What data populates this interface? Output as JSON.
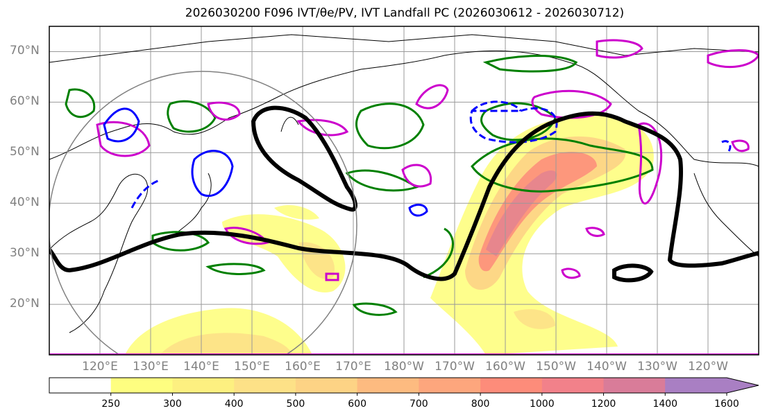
{
  "title": "2026030200 F096 IVT/θe/PV, IVT Landfall PC (2026030612 - 2026030712)",
  "map": {
    "lat_labels": [
      {
        "value": 70,
        "label": "70°N"
      },
      {
        "value": 60,
        "label": "60°N"
      },
      {
        "value": 50,
        "label": "50°N"
      },
      {
        "value": 40,
        "label": "40°N"
      },
      {
        "value": 30,
        "label": "30°N"
      },
      {
        "value": 20,
        "label": "20°N"
      }
    ],
    "lon_labels": [
      {
        "value": 120,
        "label": "120°E"
      },
      {
        "value": 130,
        "label": "130°E"
      },
      {
        "value": 140,
        "label": "140°E"
      },
      {
        "value": 150,
        "label": "150°E"
      },
      {
        "value": 160,
        "label": "160°E"
      },
      {
        "value": 170,
        "label": "170°E"
      },
      {
        "value": 180,
        "label": "180°W"
      },
      {
        "value": 190,
        "label": "170°W"
      },
      {
        "value": 200,
        "label": "160°W"
      },
      {
        "value": 210,
        "label": "150°W"
      },
      {
        "value": 220,
        "label": "140°W"
      },
      {
        "value": 230,
        "label": "130°W"
      },
      {
        "value": 240,
        "label": "120°W"
      }
    ],
    "extent": {
      "lon": [
        110,
        250
      ],
      "lat": [
        10,
        75
      ]
    },
    "colors": {
      "theta_e": "#008000",
      "pv_positive": "#cc00cc",
      "pv_negative": "#0000ff",
      "ivt_contour": "#000000",
      "circle": "#808080"
    }
  },
  "colorbar": {
    "ticks": [
      "250",
      "300",
      "400",
      "500",
      "600",
      "700",
      "800",
      "1000",
      "1200",
      "1400",
      "1600"
    ],
    "colors": [
      "#ffffff",
      "#fefe80",
      "#fdf080",
      "#fde187",
      "#fdd385",
      "#fdbb80",
      "#fda67d",
      "#fd8c7a",
      "#f2818a",
      "#d97c99",
      "#bf7fbb",
      "#a97fc3"
    ]
  }
}
